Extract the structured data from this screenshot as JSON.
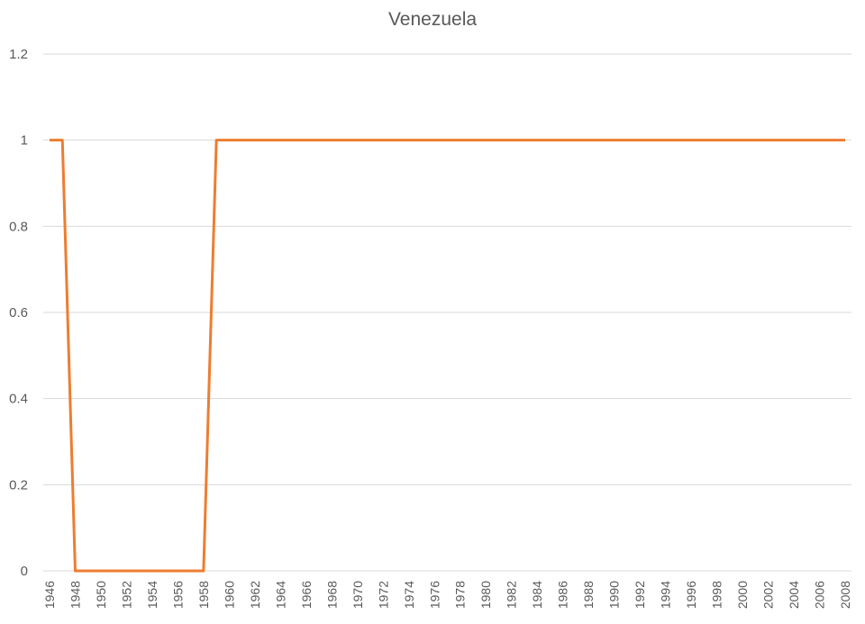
{
  "chart_data": {
    "type": "line",
    "title": "Venezuela",
    "xlabel": "",
    "ylabel": "",
    "ylim": [
      0,
      1.2
    ],
    "yticks": [
      "0",
      "0.2",
      "0.4",
      "0.6",
      "0.8",
      "1",
      "1.2"
    ],
    "xtick_labels": [
      "1946",
      "1948",
      "1950",
      "1952",
      "1954",
      "1956",
      "1958",
      "1960",
      "1962",
      "1964",
      "1966",
      "1968",
      "1970",
      "1972",
      "1974",
      "1976",
      "1978",
      "1980",
      "1982",
      "1984",
      "1986",
      "1988",
      "1990",
      "1992",
      "1994",
      "1996",
      "1998",
      "2000",
      "2002",
      "2004",
      "2006",
      "2008"
    ],
    "grid": "horizontal",
    "legend": "none",
    "line_color": "#ED7D31",
    "x": [
      1946,
      1947,
      1948,
      1949,
      1950,
      1951,
      1952,
      1953,
      1954,
      1955,
      1956,
      1957,
      1958,
      1959,
      1960,
      1961,
      1962,
      1963,
      1964,
      1965,
      1966,
      1967,
      1968,
      1969,
      1970,
      1971,
      1972,
      1973,
      1974,
      1975,
      1976,
      1977,
      1978,
      1979,
      1980,
      1981,
      1982,
      1983,
      1984,
      1985,
      1986,
      1987,
      1988,
      1989,
      1990,
      1991,
      1992,
      1993,
      1994,
      1995,
      1996,
      1997,
      1998,
      1999,
      2000,
      2001,
      2002,
      2003,
      2004,
      2005,
      2006,
      2007,
      2008
    ],
    "series": [
      {
        "values": [
          1,
          1,
          0,
          0,
          0,
          0,
          0,
          0,
          0,
          0,
          0,
          0,
          0,
          1,
          1,
          1,
          1,
          1,
          1,
          1,
          1,
          1,
          1,
          1,
          1,
          1,
          1,
          1,
          1,
          1,
          1,
          1,
          1,
          1,
          1,
          1,
          1,
          1,
          1,
          1,
          1,
          1,
          1,
          1,
          1,
          1,
          1,
          1,
          1,
          1,
          1,
          1,
          1,
          1,
          1,
          1,
          1,
          1,
          1,
          1,
          1,
          1,
          1
        ]
      }
    ]
  }
}
